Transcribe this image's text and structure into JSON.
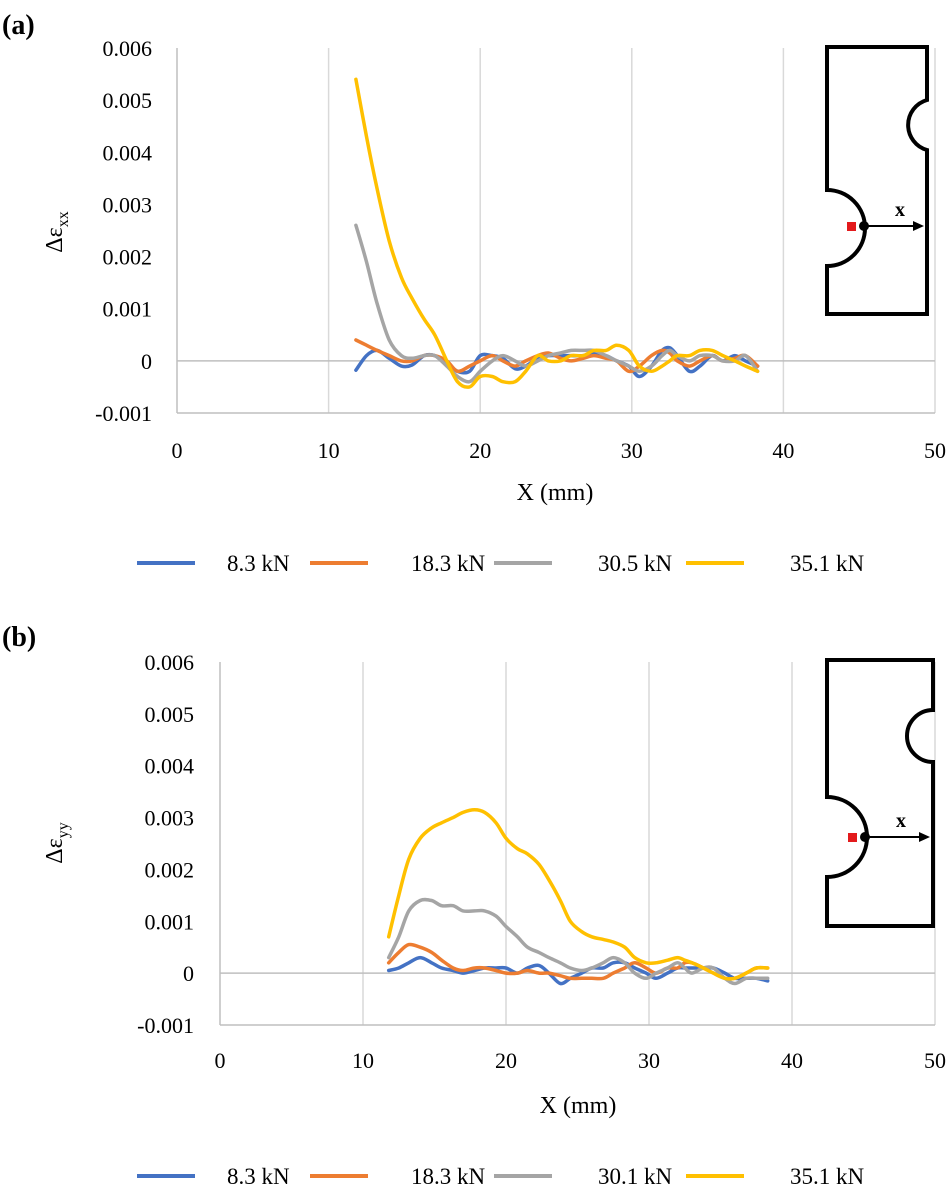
{
  "chart_data": [
    {
      "type": "line",
      "panel_label": "(a)",
      "xlabel": "X (mm)",
      "ylabel_main": "Δε",
      "ylabel_sub": "xx",
      "xlim": [
        0,
        50
      ],
      "ylim": [
        -0.001,
        0.006
      ],
      "xticks": [
        "0",
        "10",
        "20",
        "30",
        "40",
        "50"
      ],
      "yticks": [
        "-0.001",
        "0",
        "0.001",
        "0.002",
        "0.003",
        "0.004",
        "0.005",
        "0.006"
      ],
      "grid": "vertical",
      "legend_position": "bottom",
      "inset_label": "x",
      "series": [
        {
          "name": "8.3 kN",
          "color": "#4472C4",
          "x": [
            11.8,
            12.5,
            13.2,
            14.0,
            14.8,
            15.5,
            16.3,
            17.0,
            17.8,
            18.5,
            19.3,
            20.0,
            20.8,
            21.5,
            22.3,
            23.0,
            23.8,
            24.5,
            25.3,
            26.0,
            26.8,
            27.5,
            28.3,
            29.0,
            29.8,
            30.5,
            31.3,
            32.0,
            32.5,
            33.0,
            33.8,
            34.5,
            35.3,
            36.0,
            36.8,
            37.5,
            38.3
          ],
          "y": [
            -0.00018,
            0.0001,
            0.0002,
            5e-05,
            -0.0001,
            -8e-05,
            0.0001,
            0.0001,
            -5e-05,
            -0.0002,
            -0.0002,
            0.0001,
            0.0001,
            5e-05,
            -0.00015,
            -0.0001,
            5e-05,
            0.0001,
            0.0001,
            0.0001,
            0.0001,
            0.00015,
            0.0001,
            0.0,
            -0.0001,
            -0.0003,
            -0.0001,
            0.0002,
            0.00025,
            0.0001,
            -0.0002,
            -0.0001,
            0.0001,
            0.0,
            0.0001,
            0.0,
            -0.0001
          ]
        },
        {
          "name": "18.3 kN",
          "color": "#ED7D31",
          "x": [
            11.8,
            12.5,
            13.2,
            14.0,
            14.8,
            15.5,
            16.3,
            17.0,
            17.8,
            18.5,
            19.3,
            20.0,
            20.8,
            21.5,
            22.3,
            23.0,
            23.8,
            24.5,
            25.3,
            26.0,
            26.8,
            27.5,
            28.3,
            29.0,
            29.8,
            30.5,
            31.3,
            32.0,
            32.5,
            33.0,
            33.8,
            34.5,
            35.3,
            36.0,
            36.8,
            37.5,
            38.3
          ],
          "y": [
            0.0004,
            0.0003,
            0.0002,
            0.0001,
            0.0,
            0.0,
            0.0001,
            0.0001,
            0.0,
            -0.0002,
            -0.0001,
            0.0,
            0.0001,
            0.0,
            -0.0001,
            0.0,
            0.0001,
            0.00015,
            5e-05,
            0.0,
            5e-05,
            0.0001,
            5e-05,
            0.0,
            -0.0002,
            -0.0001,
            0.0001,
            0.0002,
            0.00015,
            0.0,
            -0.0001,
            0.0,
            0.0001,
            0.0,
            5e-05,
            0.0001,
            -0.0001
          ]
        },
        {
          "name": "30.5 kN",
          "color": "#A5A5A5",
          "x": [
            11.8,
            12.5,
            13.2,
            14.0,
            14.8,
            15.5,
            16.3,
            17.0,
            17.8,
            18.5,
            19.3,
            20.0,
            20.8,
            21.5,
            22.3,
            23.0,
            23.8,
            24.5,
            25.3,
            26.0,
            26.8,
            27.5,
            28.3,
            29.0,
            29.8,
            30.5,
            31.3,
            32.0,
            32.5,
            33.0,
            33.8,
            34.5,
            35.3,
            36.0,
            36.8,
            37.5,
            38.3
          ],
          "y": [
            0.0026,
            0.0019,
            0.0011,
            0.0004,
            0.0001,
            5e-05,
            0.0001,
            0.0001,
            -0.0001,
            -0.0003,
            -0.0004,
            -0.0002,
            0.0,
            0.0001,
            0.0,
            -0.0001,
            0.0,
            0.0001,
            0.00015,
            0.0002,
            0.0002,
            0.0002,
            0.0001,
            0.0,
            -0.0001,
            -0.0002,
            -0.0001,
            0.0001,
            0.0002,
            0.0001,
            0.0,
            0.0001,
            0.0001,
            0.0,
            0.0,
            0.0001,
            -0.0002
          ]
        },
        {
          "name": "35.1 kN",
          "color": "#FFC000",
          "x": [
            11.8,
            12.5,
            13.2,
            14.0,
            14.8,
            15.5,
            16.3,
            17.0,
            17.8,
            18.5,
            19.3,
            20.0,
            20.8,
            21.5,
            22.3,
            23.0,
            23.8,
            24.5,
            25.3,
            26.0,
            26.8,
            27.5,
            28.3,
            29.0,
            29.8,
            30.5,
            31.3,
            32.0,
            32.5,
            33.0,
            33.8,
            34.5,
            35.3,
            36.0,
            36.8,
            37.5,
            38.3
          ],
          "y": [
            0.0054,
            0.0043,
            0.0033,
            0.0023,
            0.0016,
            0.0012,
            0.0008,
            0.0005,
            0.0,
            -0.0004,
            -0.0005,
            -0.0003,
            -0.0003,
            -0.0004,
            -0.0004,
            -0.0002,
            0.0001,
            0.0,
            0.0,
            0.0001,
            0.0001,
            0.0002,
            0.0002,
            0.0003,
            0.0002,
            -0.0001,
            -0.0002,
            -0.0001,
            0.0,
            0.0001,
            0.0001,
            0.0002,
            0.0002,
            0.0001,
            0.0,
            -0.0001,
            -0.0002
          ]
        }
      ]
    },
    {
      "type": "line",
      "panel_label": "(b)",
      "xlabel": "X (mm)",
      "ylabel_main": "Δε",
      "ylabel_sub": "yy",
      "xlim": [
        0,
        50
      ],
      "ylim": [
        -0.001,
        0.006
      ],
      "xticks": [
        "0",
        "10",
        "20",
        "30",
        "40",
        "50"
      ],
      "yticks": [
        "-0.001",
        "0",
        "0.001",
        "0.002",
        "0.003",
        "0.004",
        "0.005",
        "0.006"
      ],
      "grid": "vertical",
      "legend_position": "bottom",
      "inset_label": "x",
      "series": [
        {
          "name": "8.3 kN",
          "color": "#4472C4",
          "x": [
            11.8,
            12.5,
            13.2,
            14.0,
            14.8,
            15.5,
            16.3,
            17.0,
            17.8,
            18.5,
            19.3,
            20.0,
            20.8,
            21.5,
            22.3,
            23.0,
            23.8,
            24.5,
            25.3,
            26.0,
            26.8,
            27.5,
            28.3,
            29.0,
            29.8,
            30.5,
            31.3,
            32.0,
            32.5,
            33.0,
            33.8,
            34.5,
            35.3,
            36.0,
            36.8,
            37.5,
            38.3
          ],
          "y": [
            5e-05,
            0.0001,
            0.0002,
            0.0003,
            0.0002,
            0.0001,
            5e-05,
            0.0,
            5e-05,
            0.0001,
            0.0001,
            0.0001,
            0.0,
            0.0001,
            0.00015,
            0.0,
            -0.0002,
            -0.0001,
            0.0,
            0.0001,
            0.0001,
            0.0002,
            0.0002,
            0.0001,
            0.0,
            -0.0001,
            0.0,
            0.0001,
            0.0001,
            0.0001,
            0.0001,
            0.0001,
            0.0,
            -0.0001,
            -0.0001,
            -0.0001,
            -0.00015
          ]
        },
        {
          "name": "18.3 kN",
          "color": "#ED7D31",
          "x": [
            11.8,
            12.5,
            13.2,
            14.0,
            14.8,
            15.5,
            16.3,
            17.0,
            17.8,
            18.5,
            19.3,
            20.0,
            20.8,
            21.5,
            22.3,
            23.0,
            23.8,
            24.5,
            25.3,
            26.0,
            26.8,
            27.5,
            28.3,
            29.0,
            29.8,
            30.5,
            31.3,
            32.0,
            32.5,
            33.0,
            33.8,
            34.5,
            35.3,
            36.0,
            36.8,
            37.5,
            38.3
          ],
          "y": [
            0.0002,
            0.0004,
            0.00055,
            0.0005,
            0.0004,
            0.00025,
            0.0001,
            5e-05,
            0.0001,
            0.0001,
            5e-05,
            0.0,
            0.0,
            5e-05,
            0.0,
            0.0,
            -5e-05,
            -0.0001,
            -0.0001,
            -0.0001,
            -0.0001,
            0.0,
            0.0001,
            0.0002,
            0.0001,
            0.0,
            0.0001,
            0.0001,
            0.0002,
            0.0002,
            0.0001,
            0.0,
            -0.0001,
            -0.0001,
            0.0,
            0.0001,
            0.0001
          ]
        },
        {
          "name": "30.1 kN",
          "color": "#A5A5A5",
          "x": [
            11.8,
            12.5,
            13.2,
            14.0,
            14.8,
            15.5,
            16.3,
            17.0,
            17.8,
            18.5,
            19.3,
            20.0,
            20.8,
            21.5,
            22.3,
            23.0,
            23.8,
            24.5,
            25.3,
            26.0,
            26.8,
            27.5,
            28.3,
            29.0,
            29.8,
            30.5,
            31.3,
            32.0,
            32.5,
            33.0,
            33.8,
            34.5,
            35.3,
            36.0,
            36.8,
            37.5,
            38.3
          ],
          "y": [
            0.0003,
            0.0007,
            0.0012,
            0.0014,
            0.0014,
            0.0013,
            0.0013,
            0.0012,
            0.0012,
            0.0012,
            0.0011,
            0.0009,
            0.0007,
            0.0005,
            0.0004,
            0.0003,
            0.0002,
            0.0001,
            5e-05,
            0.0001,
            0.0002,
            0.0003,
            0.0002,
            0.0,
            -0.0001,
            0.0,
            0.0001,
            0.0002,
            0.0001,
            0.0,
            0.0001,
            0.0001,
            -0.0001,
            -0.0002,
            -0.0001,
            -0.0001,
            -0.0001
          ]
        },
        {
          "name": "35.1 kN",
          "color": "#FFC000",
          "x": [
            11.8,
            12.5,
            13.2,
            14.0,
            14.8,
            15.5,
            16.3,
            17.0,
            17.8,
            18.5,
            19.3,
            20.0,
            20.8,
            21.5,
            22.3,
            23.0,
            23.8,
            24.5,
            25.3,
            26.0,
            26.8,
            27.5,
            28.3,
            29.0,
            29.8,
            30.5,
            31.3,
            32.0,
            32.5,
            33.0,
            33.8,
            34.5,
            35.3,
            36.0,
            36.8,
            37.5,
            38.3
          ],
          "y": [
            0.0007,
            0.0015,
            0.0022,
            0.0026,
            0.0028,
            0.0029,
            0.003,
            0.0031,
            0.00315,
            0.0031,
            0.0029,
            0.0026,
            0.0024,
            0.0023,
            0.0021,
            0.0018,
            0.0014,
            0.001,
            0.0008,
            0.0007,
            0.00065,
            0.0006,
            0.0005,
            0.0003,
            0.0002,
            0.0002,
            0.00025,
            0.0003,
            0.00025,
            0.0002,
            0.0001,
            0.0,
            -0.0001,
            -0.0001,
            0.0,
            0.0001,
            0.0001
          ]
        }
      ]
    }
  ]
}
